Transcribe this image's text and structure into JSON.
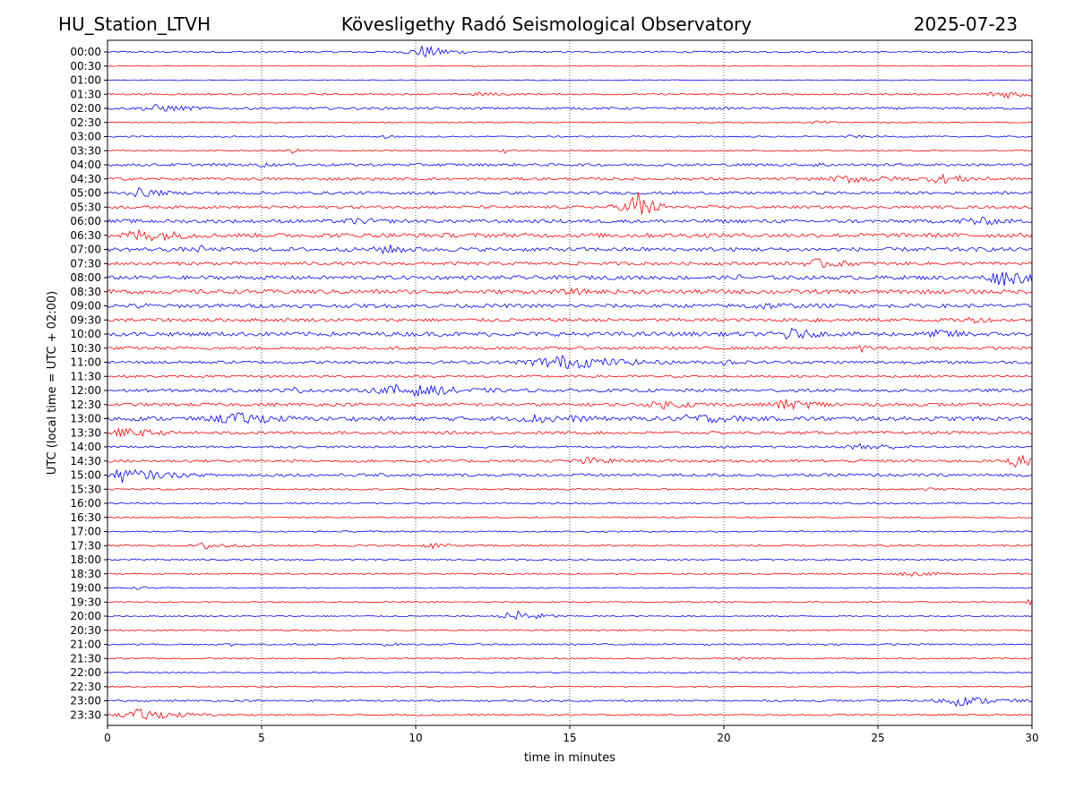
{
  "header": {
    "station": "HU_Station_LTVH",
    "observatory": "Kövesligethy Radó Seismological Observatory",
    "date": "2025-07-23"
  },
  "colors": {
    "even_row": "#0000ff",
    "odd_row": "#ff0000",
    "gridline": "#000000"
  },
  "chart_data": {
    "type": "line",
    "subtype": "helicorder",
    "xlabel": "time in minutes",
    "ylabel": "UTC (local time = UTC + 02:00)",
    "xlim": [
      0,
      30
    ],
    "xticks": [
      0,
      5,
      10,
      15,
      20,
      25,
      30
    ],
    "vertical_gridlines": [
      5,
      10,
      15,
      20,
      25
    ],
    "row_labels": [
      "00:00",
      "00:30",
      "01:00",
      "01:30",
      "02:00",
      "02:30",
      "03:00",
      "03:30",
      "04:00",
      "04:30",
      "05:00",
      "05:30",
      "06:00",
      "06:30",
      "07:00",
      "07:30",
      "08:00",
      "08:30",
      "09:00",
      "09:30",
      "10:00",
      "10:30",
      "11:00",
      "11:30",
      "12:00",
      "12:30",
      "13:00",
      "13:30",
      "14:00",
      "14:30",
      "15:00",
      "15:30",
      "16:00",
      "16:30",
      "17:00",
      "17:30",
      "18:00",
      "18:30",
      "19:00",
      "19:30",
      "20:00",
      "20:30",
      "21:00",
      "21:30",
      "22:00",
      "22:30",
      "23:00",
      "23:30"
    ],
    "base_noise": [
      1.0,
      0.3,
      0.5,
      0.9,
      1.3,
      0.6,
      0.8,
      0.7,
      1.5,
      1.5,
      1.6,
      1.6,
      2.0,
      2.4,
      2.2,
      1.8,
      2.2,
      2.4,
      2.1,
      1.9,
      2.4,
      1.6,
      1.7,
      1.3,
      1.8,
      1.8,
      2.4,
      1.6,
      1.2,
      1.5,
      1.7,
      1.0,
      0.9,
      0.8,
      0.8,
      1.0,
      0.9,
      0.8,
      0.6,
      0.7,
      0.7,
      0.8,
      0.9,
      0.8,
      0.7,
      0.6,
      1.0,
      0.9
    ],
    "events": [
      {
        "row": 0,
        "minute": 10.2,
        "amplitude": 8,
        "decay_min": 1.0
      },
      {
        "row": 1,
        "minute": 12.0,
        "amplitude": 1,
        "decay_min": 0.6
      },
      {
        "row": 2,
        "minute": 30.0,
        "amplitude": 3,
        "decay_min": 0.3
      },
      {
        "row": 3,
        "minute": 12.0,
        "amplitude": 3,
        "decay_min": 1.2
      },
      {
        "row": 3,
        "minute": 29.0,
        "amplitude": 5,
        "decay_min": 1.8
      },
      {
        "row": 4,
        "minute": 1.5,
        "amplitude": 5,
        "decay_min": 1.5
      },
      {
        "row": 5,
        "minute": 23.0,
        "amplitude": 2.5,
        "decay_min": 0.8
      },
      {
        "row": 6,
        "minute": 9.0,
        "amplitude": 3,
        "decay_min": 0.5
      },
      {
        "row": 6,
        "minute": 24.0,
        "amplitude": 2,
        "decay_min": 1.0
      },
      {
        "row": 7,
        "minute": 6.0,
        "amplitude": 3,
        "decay_min": 0.6
      },
      {
        "row": 7,
        "minute": 12.8,
        "amplitude": 4,
        "decay_min": 0.3
      },
      {
        "row": 8,
        "minute": 5.0,
        "amplitude": 3,
        "decay_min": 0.8
      },
      {
        "row": 8,
        "minute": 23.0,
        "amplitude": 3,
        "decay_min": 1.0
      },
      {
        "row": 9,
        "minute": 24.0,
        "amplitude": 5,
        "decay_min": 2.5
      },
      {
        "row": 9,
        "minute": 27.0,
        "amplitude": 6,
        "decay_min": 1.5
      },
      {
        "row": 10,
        "minute": 1.0,
        "amplitude": 6,
        "decay_min": 1.0
      },
      {
        "row": 11,
        "minute": 17.1,
        "amplitude": 25,
        "decay_min": 0.5
      },
      {
        "row": 11,
        "minute": 16.5,
        "amplitude": 5,
        "decay_min": 0.8
      },
      {
        "row": 12,
        "minute": 28.0,
        "amplitude": 6,
        "decay_min": 1.5
      },
      {
        "row": 12,
        "minute": 8.0,
        "amplitude": 4,
        "decay_min": 2.0
      },
      {
        "row": 13,
        "minute": 1.0,
        "amplitude": 8,
        "decay_min": 2.0
      },
      {
        "row": 14,
        "minute": 9.0,
        "amplitude": 6,
        "decay_min": 1.5
      },
      {
        "row": 14,
        "minute": 3.0,
        "amplitude": 5,
        "decay_min": 0.5
      },
      {
        "row": 15,
        "minute": 23.0,
        "amplitude": 6,
        "decay_min": 1.5
      },
      {
        "row": 16,
        "minute": 29.0,
        "amplitude": 10,
        "decay_min": 1.5
      },
      {
        "row": 16,
        "minute": 20.5,
        "amplitude": 4,
        "decay_min": 0.6
      },
      {
        "row": 17,
        "minute": 15.0,
        "amplitude": 4,
        "decay_min": 1.5
      },
      {
        "row": 18,
        "minute": 21.0,
        "amplitude": 5,
        "decay_min": 2.0
      },
      {
        "row": 18,
        "minute": 1.0,
        "amplitude": 4,
        "decay_min": 0.8
      },
      {
        "row": 19,
        "minute": 28.0,
        "amplitude": 4,
        "decay_min": 1.5
      },
      {
        "row": 19,
        "minute": 23.0,
        "amplitude": 4,
        "decay_min": 0.8
      },
      {
        "row": 20,
        "minute": 22.0,
        "amplitude": 8,
        "decay_min": 1.2
      },
      {
        "row": 20,
        "minute": 27.0,
        "amplitude": 6,
        "decay_min": 1.5
      },
      {
        "row": 21,
        "minute": 24.5,
        "amplitude": 5,
        "decay_min": 0.5
      },
      {
        "row": 22,
        "minute": 14.5,
        "amplitude": 9,
        "decay_min": 2.5
      },
      {
        "row": 22,
        "minute": 20.0,
        "amplitude": 5,
        "decay_min": 0.5
      },
      {
        "row": 24,
        "minute": 9.5,
        "amplitude": 8,
        "decay_min": 2.5
      },
      {
        "row": 24,
        "minute": 6.0,
        "amplitude": 5,
        "decay_min": 0.5
      },
      {
        "row": 25,
        "minute": 22.0,
        "amplitude": 6,
        "decay_min": 2.0
      },
      {
        "row": 25,
        "minute": 18.0,
        "amplitude": 5,
        "decay_min": 2.0
      },
      {
        "row": 26,
        "minute": 4.0,
        "amplitude": 8,
        "decay_min": 2.0
      },
      {
        "row": 26,
        "minute": 14.0,
        "amplitude": 6,
        "decay_min": 2.5
      },
      {
        "row": 26,
        "minute": 19.0,
        "amplitude": 6,
        "decay_min": 2.5
      },
      {
        "row": 27,
        "minute": 0.5,
        "amplitude": 6,
        "decay_min": 1.5
      },
      {
        "row": 28,
        "minute": 24.5,
        "amplitude": 5,
        "decay_min": 1.5
      },
      {
        "row": 29,
        "minute": 29.5,
        "amplitude": 9,
        "decay_min": 0.8
      },
      {
        "row": 29,
        "minute": 15.5,
        "amplitude": 5,
        "decay_min": 1.5
      },
      {
        "row": 30,
        "minute": 0.5,
        "amplitude": 9,
        "decay_min": 1.5
      },
      {
        "row": 31,
        "minute": 26.6,
        "amplitude": 4,
        "decay_min": 0.2
      },
      {
        "row": 35,
        "minute": 3.2,
        "amplitude": 5,
        "decay_min": 1.0
      },
      {
        "row": 35,
        "minute": 10.5,
        "amplitude": 4,
        "decay_min": 0.8
      },
      {
        "row": 37,
        "minute": 26.0,
        "amplitude": 3,
        "decay_min": 1.5
      },
      {
        "row": 38,
        "minute": 1.0,
        "amplitude": 2,
        "decay_min": 0.8
      },
      {
        "row": 39,
        "minute": 29.9,
        "amplitude": 5,
        "decay_min": 0.2
      },
      {
        "row": 40,
        "minute": 13.2,
        "amplitude": 9,
        "decay_min": 0.8
      },
      {
        "row": 42,
        "minute": 4.0,
        "amplitude": 3,
        "decay_min": 0.3
      },
      {
        "row": 42,
        "minute": 9.0,
        "amplitude": 2,
        "decay_min": 1.0
      },
      {
        "row": 42,
        "minute": 19.5,
        "amplitude": 2,
        "decay_min": 0.8
      },
      {
        "row": 43,
        "minute": 20.5,
        "amplitude": 2,
        "decay_min": 1.5
      },
      {
        "row": 46,
        "minute": 27.5,
        "amplitude": 6,
        "decay_min": 1.8
      },
      {
        "row": 47,
        "minute": 1.0,
        "amplitude": 7,
        "decay_min": 1.5
      }
    ]
  }
}
